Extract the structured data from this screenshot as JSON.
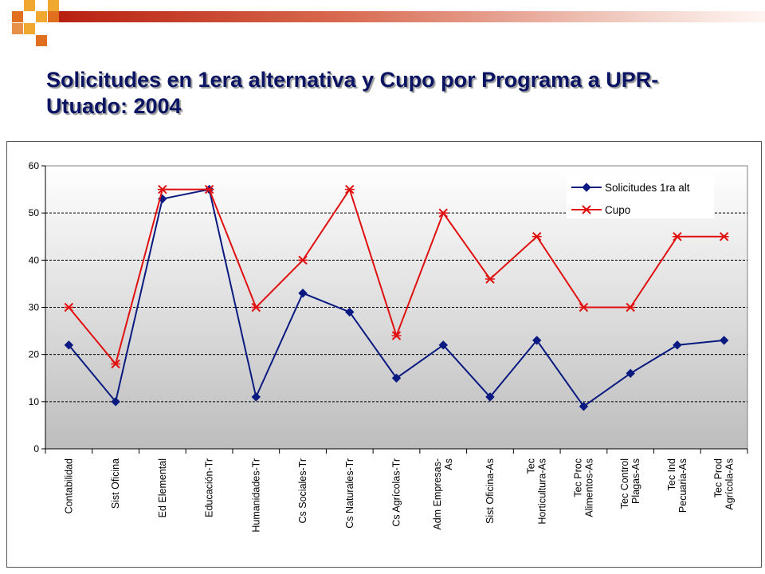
{
  "title": "Solicitudes en 1era alternativa y Cupo por Programa a UPR-Utuado:  2004",
  "colors": {
    "title": "#0a1463",
    "solicitudes": "#0a1a80",
    "cupo": "#e01010",
    "deco_orange": "#e07020",
    "deco_gold": "#f0a830"
  },
  "chart_data": {
    "type": "line",
    "categories": [
      [
        "Contabilidad"
      ],
      [
        "Sist Oficina"
      ],
      [
        "Ed Elemental"
      ],
      [
        "Educación-Tr"
      ],
      [
        "Humanidades-Tr"
      ],
      [
        "Cs Sociales-Tr"
      ],
      [
        "Cs Naturales-Tr"
      ],
      [
        "Cs Agrícolas-Tr"
      ],
      [
        "Adm Empresas-",
        "As"
      ],
      [
        "Sist Oficina-As"
      ],
      [
        "Tec",
        "Horticultura-As"
      ],
      [
        "Tec Proc",
        "Alimentos-As"
      ],
      [
        "Tec Control",
        "Plagas-As"
      ],
      [
        "Tec Ind",
        "Pecuaria-As"
      ],
      [
        "Tec Prod",
        "Agrícola-As"
      ]
    ],
    "series": [
      {
        "name": "Solicitudes 1ra alt",
        "marker": "diamond",
        "values": [
          22,
          10,
          53,
          55,
          11,
          33,
          29,
          15,
          22,
          11,
          23,
          9,
          16,
          22,
          23
        ]
      },
      {
        "name": "Cupo",
        "marker": "asterisk",
        "values": [
          30,
          18,
          55,
          55,
          30,
          40,
          55,
          24,
          50,
          36,
          45,
          30,
          30,
          45,
          45
        ]
      }
    ],
    "ylim": [
      0,
      60
    ],
    "yticks": [
      0,
      10,
      20,
      30,
      40,
      50,
      60
    ],
    "grid": true,
    "legend": "top-right"
  }
}
